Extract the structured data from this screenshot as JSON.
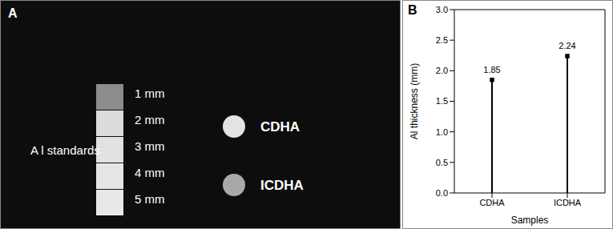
{
  "panel_a": {
    "label": "A",
    "standards_label": "A l standards",
    "standards": [
      "1 mm",
      "2 mm",
      "3 mm",
      "4 mm",
      "5 mm"
    ],
    "samples": [
      "CDHA",
      "ICDHA"
    ]
  },
  "chart_data": {
    "panel_label": "B",
    "type": "stem",
    "x_label": "Samples",
    "y_label": "Al thickness (mm)",
    "categories": [
      "CDHA",
      "ICDHA"
    ],
    "values": [
      1.85,
      2.24
    ],
    "color": "#000000",
    "marker": "square",
    "data_labels": true,
    "ylim": [
      0,
      3
    ],
    "yticks": [
      {
        "value": 0,
        "label": "0.0"
      },
      0.5,
      {
        "value": 1,
        "label": "1.0"
      },
      1.5,
      {
        "value": 2,
        "label": "2.0"
      },
      2.5,
      {
        "value": 3,
        "label": "3.0"
      }
    ],
    "grid": false
  }
}
